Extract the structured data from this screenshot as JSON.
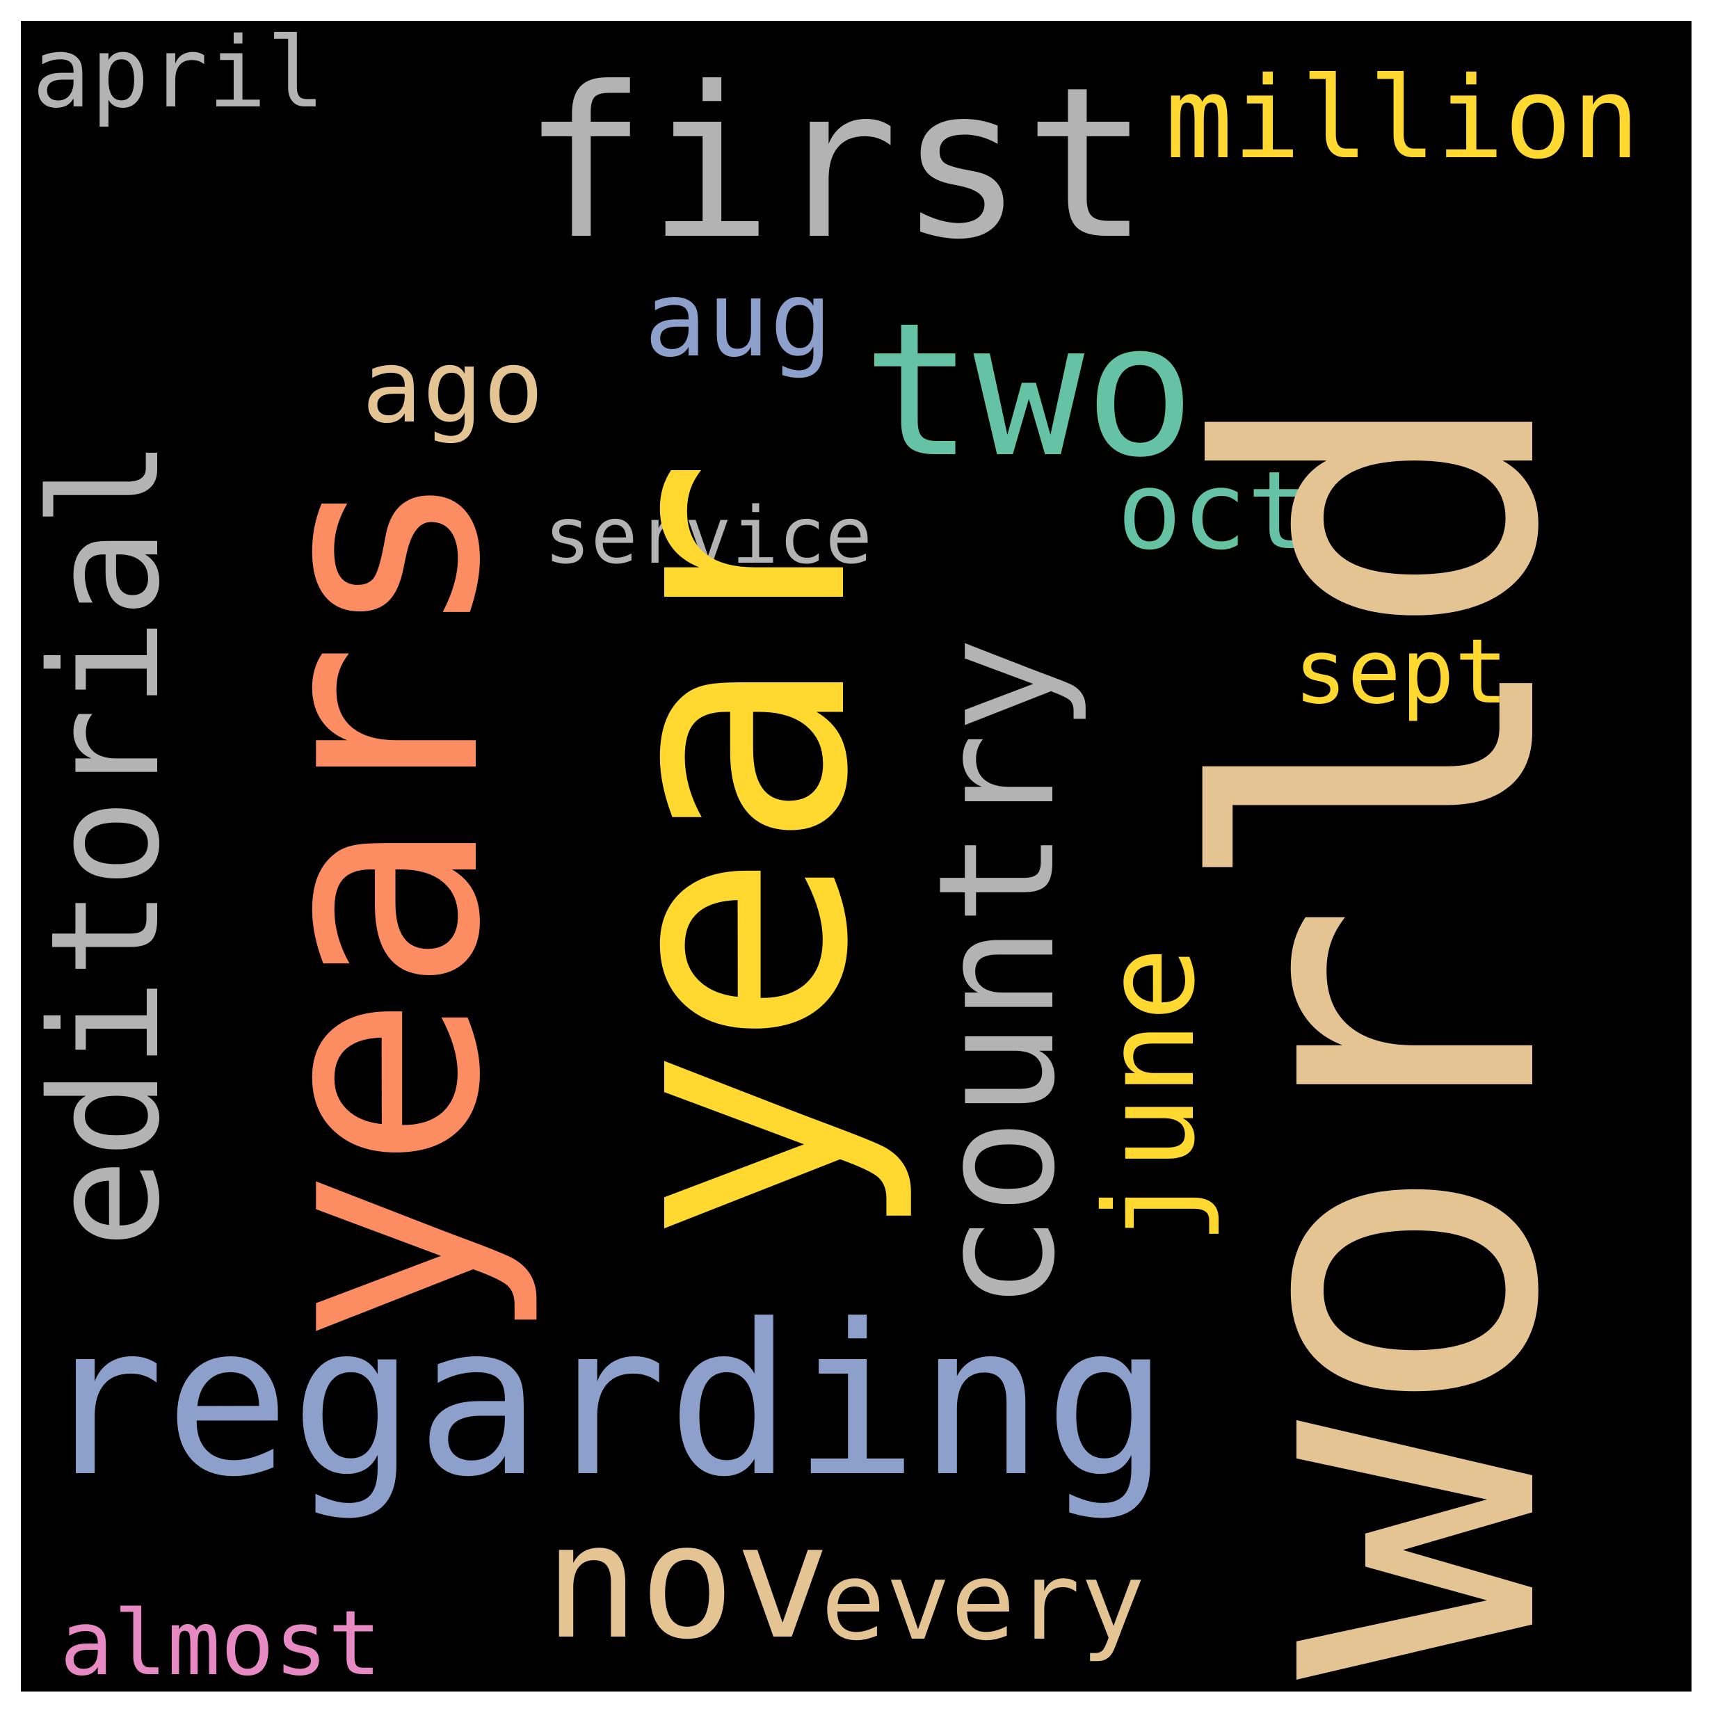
{
  "words": {
    "april": {
      "text": "april",
      "color": "#b3b3b3"
    },
    "first": {
      "text": "first",
      "color": "#b3b3b3"
    },
    "million": {
      "text": "million",
      "color": "#ffd92f"
    },
    "world": {
      "text": "world",
      "color": "#e5c494"
    },
    "years": {
      "text": "years",
      "color": "#fc8d62"
    },
    "year": {
      "text": "year",
      "color": "#ffd92f"
    },
    "editorial": {
      "text": "editorial",
      "color": "#b3b3b3"
    },
    "aug": {
      "text": "aug",
      "color": "#8da0cb"
    },
    "two": {
      "text": "two",
      "color": "#66c2a5"
    },
    "ago": {
      "text": "ago",
      "color": "#e5c494"
    },
    "country": {
      "text": "country",
      "color": "#b3b3b3"
    },
    "oct": {
      "text": "oct",
      "color": "#66c2a5"
    },
    "service": {
      "text": "service",
      "color": "#b3b3b3"
    },
    "sept": {
      "text": "sept",
      "color": "#ffd92f"
    },
    "june": {
      "text": "june",
      "color": "#ffd92f"
    },
    "regarding": {
      "text": "regarding",
      "color": "#8da0cb"
    },
    "nov": {
      "text": "nov",
      "color": "#e5c494"
    },
    "every": {
      "text": "every",
      "color": "#e5c494"
    },
    "almost": {
      "text": "almost",
      "color": "#e78ac3"
    }
  },
  "background_color": "#000000"
}
